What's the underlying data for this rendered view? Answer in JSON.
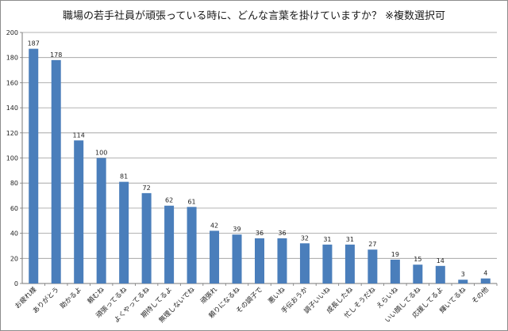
{
  "chart_data": {
    "type": "bar",
    "title": "職場の若手社員が頑張っている時に、どんな言葉を掛けていますか？ ※複数選択可",
    "xlabel": "",
    "ylabel": "",
    "ylim": [
      0,
      200
    ],
    "yticks": [
      0,
      20,
      40,
      60,
      80,
      100,
      120,
      140,
      160,
      180,
      200
    ],
    "grid": true,
    "legend": "none",
    "bar_color": "#4a7ebb",
    "categories": [
      "お疲れ様",
      "ありがとう",
      "助かるよ",
      "頼むね",
      "頑張ってるね",
      "よくやってるね",
      "期待してるよ",
      "無理しないでね",
      "頑張れ",
      "頼りになるね",
      "その調子で",
      "悪いね",
      "手伝おうか",
      "調子いいね",
      "成長したね",
      "忙しそうだね",
      "えらいね",
      "いい顔してるね",
      "応援してるよ",
      "輝いてるね",
      "その他"
    ],
    "values": [
      187,
      178,
      114,
      100,
      81,
      72,
      62,
      61,
      42,
      39,
      36,
      36,
      32,
      31,
      31,
      27,
      19,
      15,
      14,
      3,
      4
    ]
  }
}
